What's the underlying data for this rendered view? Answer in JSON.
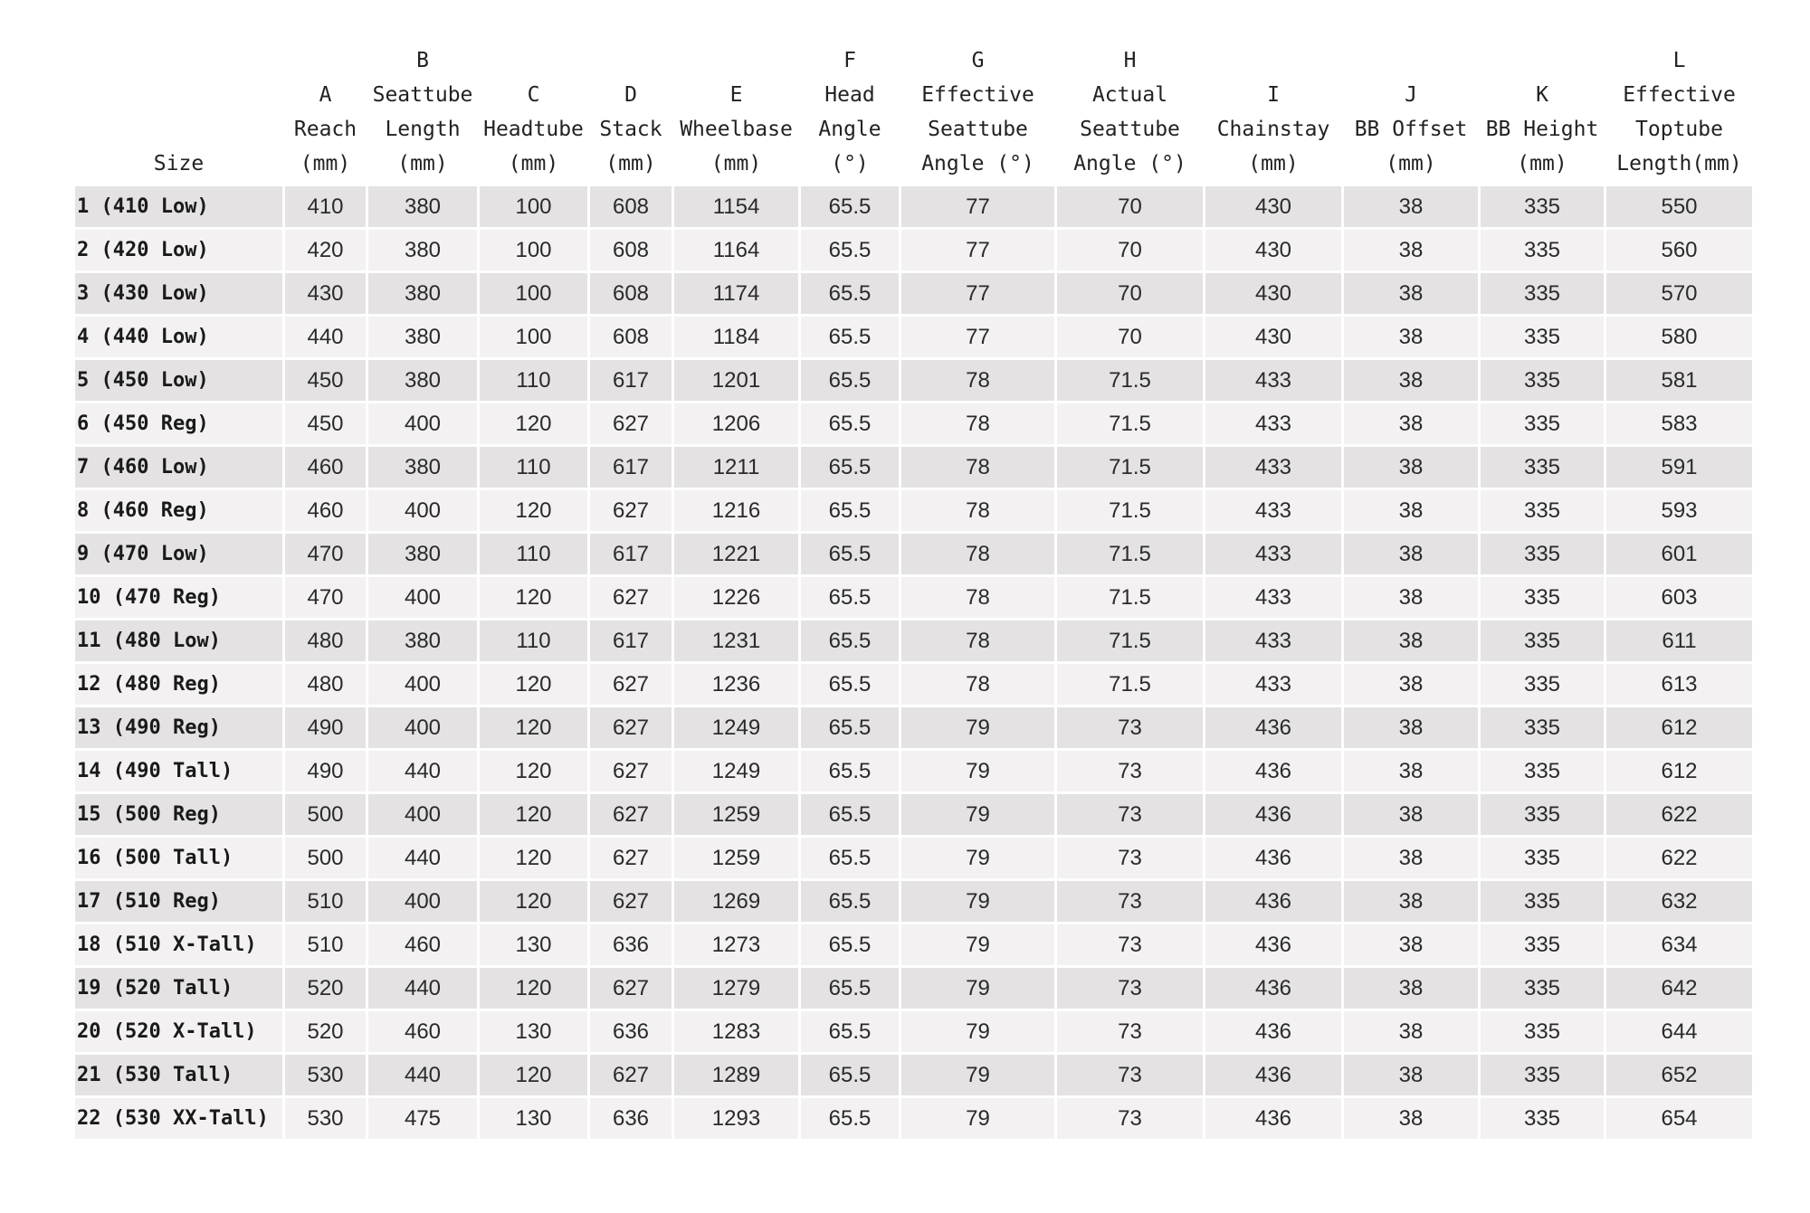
{
  "table": {
    "colors": {
      "row_dark": "#e4e2e2",
      "row_light": "#f3f1f1",
      "text": "#1c1c1c"
    },
    "columns": [
      {
        "key": "size",
        "lines": [
          "Size"
        ]
      },
      {
        "key": "A",
        "lines": [
          "A",
          "Reach",
          "(mm)"
        ]
      },
      {
        "key": "B",
        "lines": [
          "B",
          "Seattube",
          "Length",
          "(mm)"
        ]
      },
      {
        "key": "C",
        "lines": [
          "C",
          "Headtube",
          "(mm)"
        ]
      },
      {
        "key": "D",
        "lines": [
          "D",
          "Stack",
          "(mm)"
        ]
      },
      {
        "key": "E",
        "lines": [
          "E",
          "Wheelbase",
          "(mm)"
        ]
      },
      {
        "key": "F",
        "lines": [
          "F",
          "Head",
          "Angle",
          "(°)"
        ]
      },
      {
        "key": "G",
        "lines": [
          "G",
          "Effective",
          "Seattube",
          "Angle (°)"
        ]
      },
      {
        "key": "H",
        "lines": [
          "H",
          "Actual",
          "Seattube",
          "Angle (°)"
        ]
      },
      {
        "key": "I",
        "lines": [
          "I",
          "Chainstay",
          "(mm)"
        ]
      },
      {
        "key": "J",
        "lines": [
          "J",
          "BB Offset",
          "(mm)"
        ]
      },
      {
        "key": "K",
        "lines": [
          "K",
          "BB Height",
          "(mm)"
        ]
      },
      {
        "key": "L",
        "lines": [
          "L",
          "Effective",
          "Toptube",
          "Length(mm)"
        ]
      }
    ],
    "rows": [
      [
        "1 (410 Low)",
        "410",
        "380",
        "100",
        "608",
        "1154",
        "65.5",
        "77",
        "70",
        "430",
        "38",
        "335",
        "550"
      ],
      [
        "2 (420 Low)",
        "420",
        "380",
        "100",
        "608",
        "1164",
        "65.5",
        "77",
        "70",
        "430",
        "38",
        "335",
        "560"
      ],
      [
        "3 (430 Low)",
        "430",
        "380",
        "100",
        "608",
        "1174",
        "65.5",
        "77",
        "70",
        "430",
        "38",
        "335",
        "570"
      ],
      [
        "4 (440 Low)",
        "440",
        "380",
        "100",
        "608",
        "1184",
        "65.5",
        "77",
        "70",
        "430",
        "38",
        "335",
        "580"
      ],
      [
        "5 (450 Low)",
        "450",
        "380",
        "110",
        "617",
        "1201",
        "65.5",
        "78",
        "71.5",
        "433",
        "38",
        "335",
        "581"
      ],
      [
        "6 (450 Reg)",
        "450",
        "400",
        "120",
        "627",
        "1206",
        "65.5",
        "78",
        "71.5",
        "433",
        "38",
        "335",
        "583"
      ],
      [
        "7 (460 Low)",
        "460",
        "380",
        "110",
        "617",
        "1211",
        "65.5",
        "78",
        "71.5",
        "433",
        "38",
        "335",
        "591"
      ],
      [
        "8 (460 Reg)",
        "460",
        "400",
        "120",
        "627",
        "1216",
        "65.5",
        "78",
        "71.5",
        "433",
        "38",
        "335",
        "593"
      ],
      [
        "9 (470 Low)",
        "470",
        "380",
        "110",
        "617",
        "1221",
        "65.5",
        "78",
        "71.5",
        "433",
        "38",
        "335",
        "601"
      ],
      [
        "10 (470 Reg)",
        "470",
        "400",
        "120",
        "627",
        "1226",
        "65.5",
        "78",
        "71.5",
        "433",
        "38",
        "335",
        "603"
      ],
      [
        "11 (480 Low)",
        "480",
        "380",
        "110",
        "617",
        "1231",
        "65.5",
        "78",
        "71.5",
        "433",
        "38",
        "335",
        "611"
      ],
      [
        "12 (480 Reg)",
        "480",
        "400",
        "120",
        "627",
        "1236",
        "65.5",
        "78",
        "71.5",
        "433",
        "38",
        "335",
        "613"
      ],
      [
        "13 (490 Reg)",
        "490",
        "400",
        "120",
        "627",
        "1249",
        "65.5",
        "79",
        "73",
        "436",
        "38",
        "335",
        "612"
      ],
      [
        "14 (490 Tall)",
        "490",
        "440",
        "120",
        "627",
        "1249",
        "65.5",
        "79",
        "73",
        "436",
        "38",
        "335",
        "612"
      ],
      [
        "15 (500 Reg)",
        "500",
        "400",
        "120",
        "627",
        "1259",
        "65.5",
        "79",
        "73",
        "436",
        "38",
        "335",
        "622"
      ],
      [
        "16 (500 Tall)",
        "500",
        "440",
        "120",
        "627",
        "1259",
        "65.5",
        "79",
        "73",
        "436",
        "38",
        "335",
        "622"
      ],
      [
        "17 (510 Reg)",
        "510",
        "400",
        "120",
        "627",
        "1269",
        "65.5",
        "79",
        "73",
        "436",
        "38",
        "335",
        "632"
      ],
      [
        "18 (510 X-Tall)",
        "510",
        "460",
        "130",
        "636",
        "1273",
        "65.5",
        "79",
        "73",
        "436",
        "38",
        "335",
        "634"
      ],
      [
        "19 (520 Tall)",
        "520",
        "440",
        "120",
        "627",
        "1279",
        "65.5",
        "79",
        "73",
        "436",
        "38",
        "335",
        "642"
      ],
      [
        "20 (520 X-Tall)",
        "520",
        "460",
        "130",
        "636",
        "1283",
        "65.5",
        "79",
        "73",
        "436",
        "38",
        "335",
        "644"
      ],
      [
        "21 (530 Tall)",
        "530",
        "440",
        "120",
        "627",
        "1289",
        "65.5",
        "79",
        "73",
        "436",
        "38",
        "335",
        "652"
      ],
      [
        "22 (530 XX-Tall)",
        "530",
        "475",
        "130",
        "636",
        "1293",
        "65.5",
        "79",
        "73",
        "436",
        "38",
        "335",
        "654"
      ]
    ]
  }
}
